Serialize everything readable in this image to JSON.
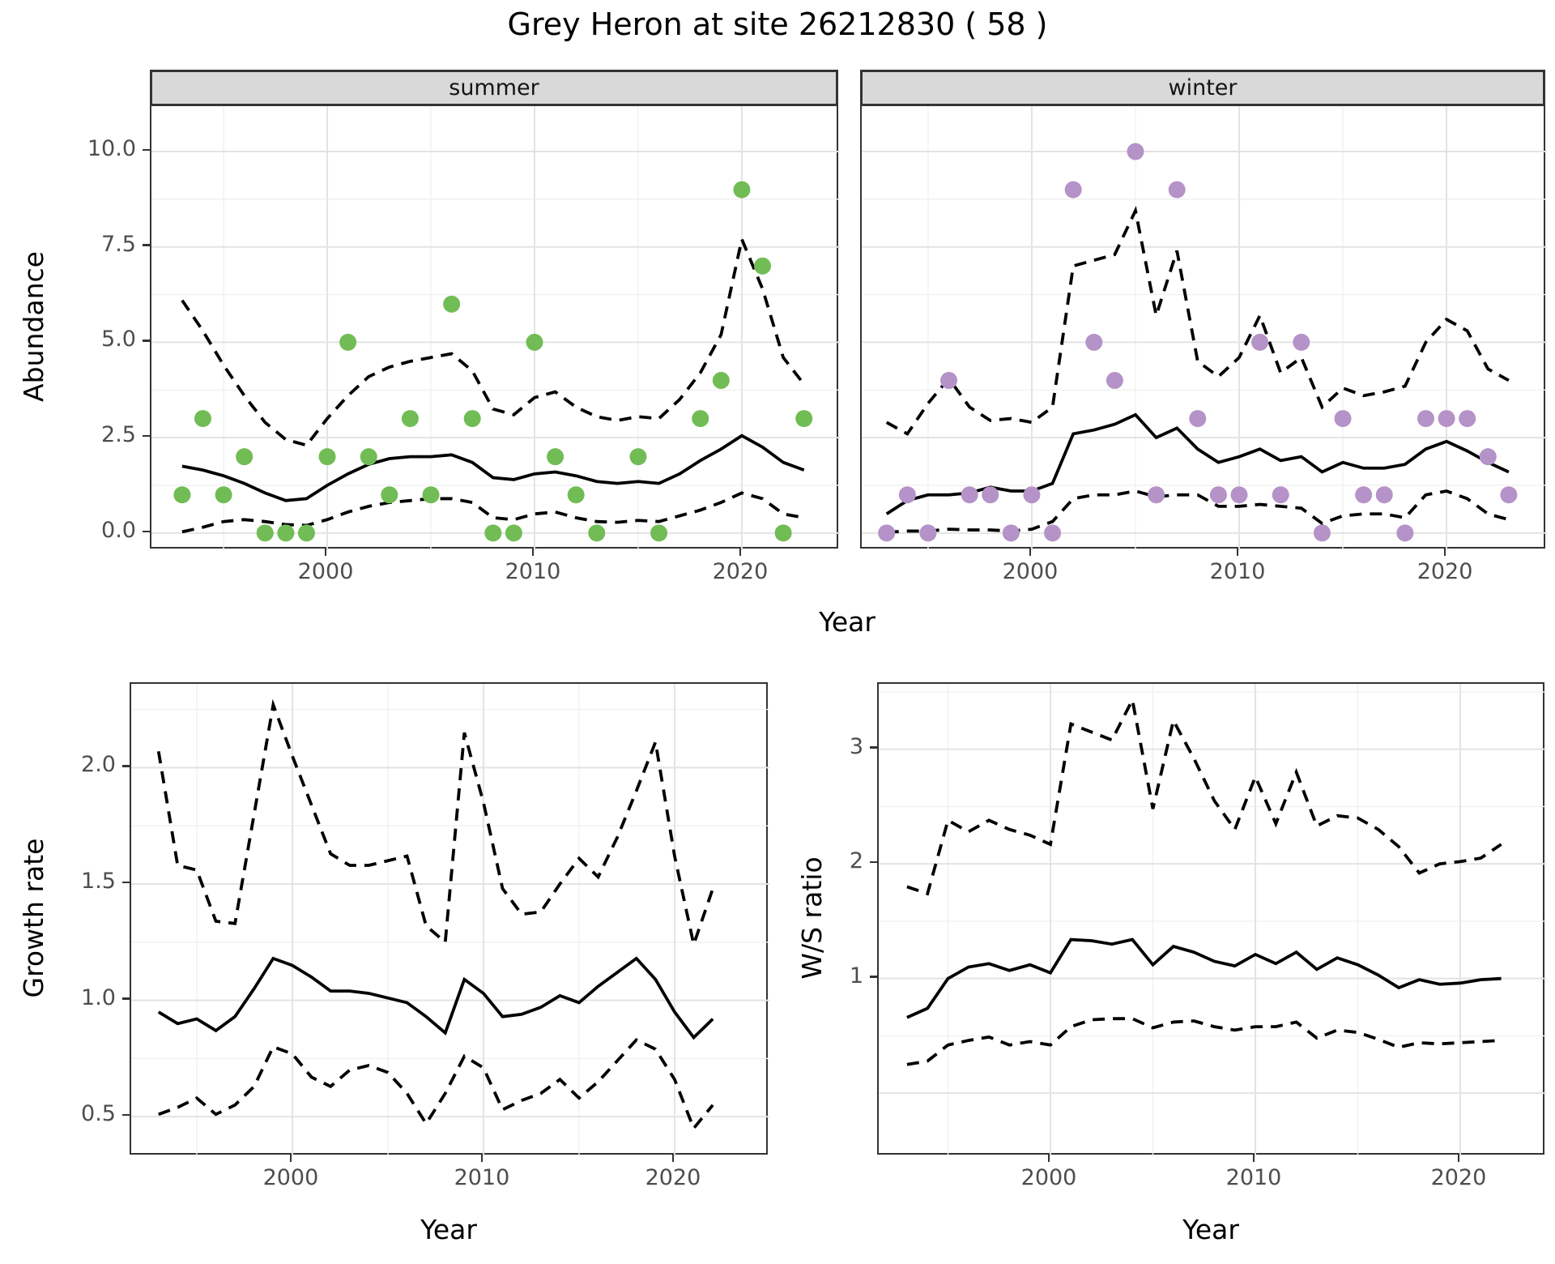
{
  "title": "Grey Heron at site 26212830 ( 58 )",
  "facets": {
    "summer": "summer",
    "winter": "winter"
  },
  "axis_titles": {
    "abundance": "Abundance",
    "year_top": "Year",
    "growth": "Growth rate",
    "ws": "W/S ratio",
    "year_growth": "Year",
    "year_ws": "Year"
  },
  "colors": {
    "summer_point": "#71BC55",
    "winter_point": "#B592C7",
    "line": "#000000",
    "grid_major": "#E3E3E3",
    "grid_minor": "#F1F1F1",
    "strip_bg": "#D9D9D9",
    "panel_border": "#333333",
    "tick_text": "#4D4D4D"
  },
  "chart_data": [
    {
      "id": "summer",
      "type": "scatter+line",
      "facet": "summer",
      "ylabel": "Abundance",
      "xlabel": "Year",
      "x": [
        1993,
        1994,
        1995,
        1996,
        1997,
        1998,
        1999,
        2000,
        2001,
        2002,
        2003,
        2004,
        2005,
        2006,
        2007,
        2008,
        2009,
        2010,
        2011,
        2012,
        2013,
        2014,
        2015,
        2016,
        2017,
        2018,
        2019,
        2020,
        2021,
        2022,
        2023
      ],
      "points": [
        1,
        3,
        1,
        2,
        0,
        0,
        0,
        2,
        5,
        2,
        1,
        3,
        1,
        6,
        3,
        0,
        0,
        5,
        2,
        1,
        0,
        null,
        2,
        0,
        null,
        3,
        4,
        9,
        7,
        0,
        3
      ],
      "series": [
        {
          "name": "mean",
          "style": "solid",
          "values": [
            1.75,
            1.65,
            1.5,
            1.3,
            1.05,
            0.85,
            0.9,
            1.25,
            1.55,
            1.8,
            1.95,
            2.0,
            2.0,
            2.05,
            1.85,
            1.45,
            1.4,
            1.55,
            1.6,
            1.5,
            1.35,
            1.3,
            1.35,
            1.3,
            1.55,
            1.9,
            2.2,
            2.55,
            2.25,
            1.85,
            1.65
          ]
        },
        {
          "name": "upper95",
          "style": "dashed",
          "values": [
            6.1,
            5.3,
            4.4,
            3.6,
            2.9,
            2.45,
            2.3,
            3.0,
            3.6,
            4.1,
            4.35,
            4.5,
            4.6,
            4.7,
            4.25,
            3.25,
            3.1,
            3.55,
            3.7,
            3.3,
            3.05,
            2.95,
            3.05,
            3.0,
            3.5,
            4.2,
            5.2,
            7.7,
            6.4,
            4.6,
            3.9
          ]
        },
        {
          "name": "lower95",
          "style": "dashed",
          "values": [
            0.03,
            0.15,
            0.3,
            0.35,
            0.3,
            0.22,
            0.2,
            0.35,
            0.55,
            0.7,
            0.8,
            0.85,
            0.9,
            0.9,
            0.8,
            0.4,
            0.35,
            0.5,
            0.55,
            0.4,
            0.3,
            0.28,
            0.33,
            0.3,
            0.45,
            0.6,
            0.8,
            1.05,
            0.9,
            0.5,
            0.4
          ]
        }
      ],
      "xlim": [
        1991.52,
        2024.73
      ],
      "ylim": [
        -0.45,
        11.19
      ],
      "xticks": [
        {
          "v": 2000,
          "label": "2000"
        },
        {
          "v": 2010,
          "label": "2010"
        },
        {
          "v": 2020,
          "label": "2020"
        }
      ],
      "yticks": [
        {
          "v": 0,
          "label": "0.0"
        },
        {
          "v": 2.5,
          "label": "2.5"
        },
        {
          "v": 5,
          "label": "5.0"
        },
        {
          "v": 7.5,
          "label": "7.5"
        },
        {
          "v": 10,
          "label": "10.0"
        }
      ],
      "grid": {
        "x_major": [
          2000,
          2010,
          2020
        ],
        "x_minor": [
          1995,
          2005,
          2015
        ],
        "y_major": [
          0,
          2.5,
          5,
          7.5,
          10
        ],
        "y_minor": [
          1.25,
          3.75,
          6.25,
          8.75
        ]
      },
      "point_color": "#71BC55"
    },
    {
      "id": "winter",
      "type": "scatter+line",
      "facet": "winter",
      "ylabel": "Abundance",
      "xlabel": "Year",
      "x": [
        1993,
        1994,
        1995,
        1996,
        1997,
        1998,
        1999,
        2000,
        2001,
        2002,
        2003,
        2004,
        2005,
        2006,
        2007,
        2008,
        2009,
        2010,
        2011,
        2012,
        2013,
        2014,
        2015,
        2016,
        2017,
        2018,
        2019,
        2020,
        2021,
        2022,
        2023
      ],
      "points": [
        0,
        1,
        0,
        4,
        1,
        1,
        0,
        1,
        0,
        9,
        5,
        4,
        10,
        1,
        9,
        3,
        1,
        1,
        5,
        1,
        5,
        0,
        3,
        1,
        1,
        0,
        3,
        3,
        3,
        2,
        1
      ],
      "series": [
        {
          "name": "mean",
          "style": "solid",
          "values": [
            0.5,
            0.85,
            1.0,
            1.0,
            1.05,
            1.2,
            1.1,
            1.1,
            1.3,
            2.6,
            2.7,
            2.85,
            3.1,
            2.5,
            2.75,
            2.2,
            1.85,
            2.0,
            2.2,
            1.9,
            2.0,
            1.6,
            1.85,
            1.7,
            1.7,
            1.8,
            2.2,
            2.4,
            2.15,
            1.85,
            1.6
          ]
        },
        {
          "name": "upper95",
          "style": "dashed",
          "values": [
            2.9,
            2.6,
            3.4,
            4.05,
            3.3,
            2.95,
            3.0,
            2.9,
            3.3,
            7.0,
            7.15,
            7.3,
            8.45,
            5.7,
            7.4,
            4.5,
            4.1,
            4.6,
            5.7,
            4.2,
            4.6,
            3.3,
            3.8,
            3.6,
            3.7,
            3.85,
            5.0,
            5.6,
            5.3,
            4.3,
            4.0
          ]
        },
        {
          "name": "lower95",
          "style": "dashed",
          "values": [
            0.02,
            0.05,
            0.05,
            0.1,
            0.08,
            0.08,
            0.05,
            0.1,
            0.3,
            0.9,
            1.0,
            1.0,
            1.1,
            0.95,
            1.0,
            1.0,
            0.7,
            0.7,
            0.75,
            0.7,
            0.65,
            0.25,
            0.45,
            0.5,
            0.5,
            0.4,
            1.0,
            1.1,
            0.9,
            0.5,
            0.35
          ]
        }
      ],
      "xlim": [
        1991.8,
        2024.84
      ],
      "ylim": [
        -0.45,
        11.19
      ],
      "xticks": [
        {
          "v": 2000,
          "label": "2000"
        },
        {
          "v": 2010,
          "label": "2010"
        },
        {
          "v": 2020,
          "label": "2020"
        }
      ],
      "yticks": [],
      "grid": {
        "x_major": [
          2000,
          2010,
          2020
        ],
        "x_minor": [
          1995,
          2005,
          2015
        ],
        "y_major": [
          0,
          2.5,
          5,
          7.5,
          10
        ],
        "y_minor": [
          1.25,
          3.75,
          6.25,
          8.75
        ]
      },
      "point_color": "#B592C7"
    },
    {
      "id": "growth",
      "type": "line",
      "facet": null,
      "ylabel": "Growth rate",
      "xlabel": "Year",
      "x": [
        1993,
        1994,
        1995,
        1996,
        1997,
        1998,
        1999,
        2000,
        2001,
        2002,
        2003,
        2004,
        2005,
        2006,
        2007,
        2008,
        2009,
        2010,
        2011,
        2012,
        2013,
        2014,
        2015,
        2016,
        2017,
        2018,
        2019,
        2020,
        2021,
        2022
      ],
      "points": null,
      "series": [
        {
          "name": "median",
          "style": "solid",
          "values": [
            0.95,
            0.9,
            0.92,
            0.87,
            0.93,
            1.05,
            1.18,
            1.15,
            1.1,
            1.04,
            1.04,
            1.03,
            1.01,
            0.99,
            0.93,
            0.86,
            1.09,
            1.03,
            0.93,
            0.94,
            0.97,
            1.02,
            0.99,
            1.06,
            1.12,
            1.18,
            1.09,
            0.95,
            0.84,
            0.92
          ]
        },
        {
          "name": "upper95",
          "style": "dashed",
          "values": [
            2.07,
            1.58,
            1.56,
            1.34,
            1.33,
            1.8,
            2.27,
            2.05,
            1.84,
            1.63,
            1.58,
            1.58,
            1.6,
            1.62,
            1.32,
            1.25,
            2.15,
            1.85,
            1.48,
            1.37,
            1.38,
            1.5,
            1.61,
            1.53,
            1.7,
            1.9,
            2.11,
            1.62,
            1.24,
            1.48
          ]
        },
        {
          "name": "lower95",
          "style": "dashed",
          "values": [
            0.51,
            0.54,
            0.58,
            0.51,
            0.55,
            0.63,
            0.8,
            0.77,
            0.67,
            0.63,
            0.7,
            0.72,
            0.69,
            0.6,
            0.47,
            0.6,
            0.76,
            0.71,
            0.53,
            0.57,
            0.6,
            0.66,
            0.58,
            0.65,
            0.74,
            0.83,
            0.79,
            0.66,
            0.45,
            0.55
          ]
        }
      ],
      "xlim": [
        1991.57,
        2024.96
      ],
      "ylim": [
        0.33,
        2.36
      ],
      "xticks": [
        {
          "v": 2000,
          "label": "2000"
        },
        {
          "v": 2010,
          "label": "2010"
        },
        {
          "v": 2020,
          "label": "2020"
        }
      ],
      "yticks": [
        {
          "v": 0.5,
          "label": "0.5"
        },
        {
          "v": 1.0,
          "label": "1.0"
        },
        {
          "v": 1.5,
          "label": "1.5"
        },
        {
          "v": 2.0,
          "label": "2.0"
        }
      ],
      "grid": {
        "x_major": [
          2000,
          2010,
          2020
        ],
        "x_minor": [
          1995,
          2005,
          2015
        ],
        "y_major": [
          0.5,
          1.0,
          1.5,
          2.0
        ],
        "y_minor": [
          0.75,
          1.25,
          1.75,
          2.25
        ]
      },
      "point_color": null
    },
    {
      "id": "ws",
      "type": "line",
      "facet": null,
      "ylabel": "W/S ratio",
      "xlabel": "Year",
      "x": [
        1993,
        1994,
        1995,
        1996,
        1997,
        1998,
        1999,
        2000,
        2001,
        2002,
        2003,
        2004,
        2005,
        2006,
        2007,
        2008,
        2009,
        2010,
        2011,
        2012,
        2013,
        2014,
        2015,
        2016,
        2017,
        2018,
        2019,
        2020,
        2021,
        2022
      ],
      "points": null,
      "series": [
        {
          "name": "median",
          "style": "solid",
          "values": [
            0.66,
            0.74,
            1.0,
            1.1,
            1.13,
            1.07,
            1.12,
            1.05,
            1.34,
            1.33,
            1.3,
            1.34,
            1.12,
            1.28,
            1.23,
            1.15,
            1.11,
            1.21,
            1.13,
            1.23,
            1.08,
            1.18,
            1.12,
            1.03,
            0.92,
            0.99,
            0.95,
            0.96,
            0.99,
            1.0
          ]
        },
        {
          "name": "upper95",
          "style": "dashed",
          "values": [
            1.8,
            1.74,
            2.38,
            2.28,
            2.38,
            2.3,
            2.25,
            2.17,
            3.22,
            3.15,
            3.08,
            3.43,
            2.48,
            3.25,
            2.92,
            2.55,
            2.3,
            2.76,
            2.35,
            2.8,
            2.33,
            2.42,
            2.4,
            2.3,
            2.15,
            1.92,
            2.0,
            2.02,
            2.05,
            2.17
          ]
        },
        {
          "name": "lower95",
          "style": "dashed",
          "values": [
            0.25,
            0.28,
            0.42,
            0.46,
            0.49,
            0.42,
            0.45,
            0.42,
            0.58,
            0.64,
            0.65,
            0.65,
            0.57,
            0.62,
            0.63,
            0.58,
            0.55,
            0.58,
            0.58,
            0.62,
            0.48,
            0.55,
            0.53,
            0.47,
            0.4,
            0.44,
            0.43,
            0.44,
            0.45,
            0.46
          ]
        }
      ],
      "xlim": [
        1991.62,
        2024.19
      ],
      "ylim": [
        -0.55,
        3.57
      ],
      "xticks": [
        {
          "v": 2000,
          "label": "2000"
        },
        {
          "v": 2010,
          "label": "2010"
        },
        {
          "v": 2020,
          "label": "2020"
        }
      ],
      "yticks": [
        {
          "v": 1,
          "label": "1"
        },
        {
          "v": 2,
          "label": "2"
        },
        {
          "v": 3,
          "label": "3"
        }
      ],
      "grid": {
        "x_major": [
          2000,
          2010,
          2020
        ],
        "x_minor": [
          1995,
          2005,
          2015
        ],
        "y_major": [
          0,
          1,
          2,
          3
        ],
        "y_minor": [
          0.5,
          1.5,
          2.5,
          3.5
        ]
      },
      "point_color": null
    }
  ]
}
